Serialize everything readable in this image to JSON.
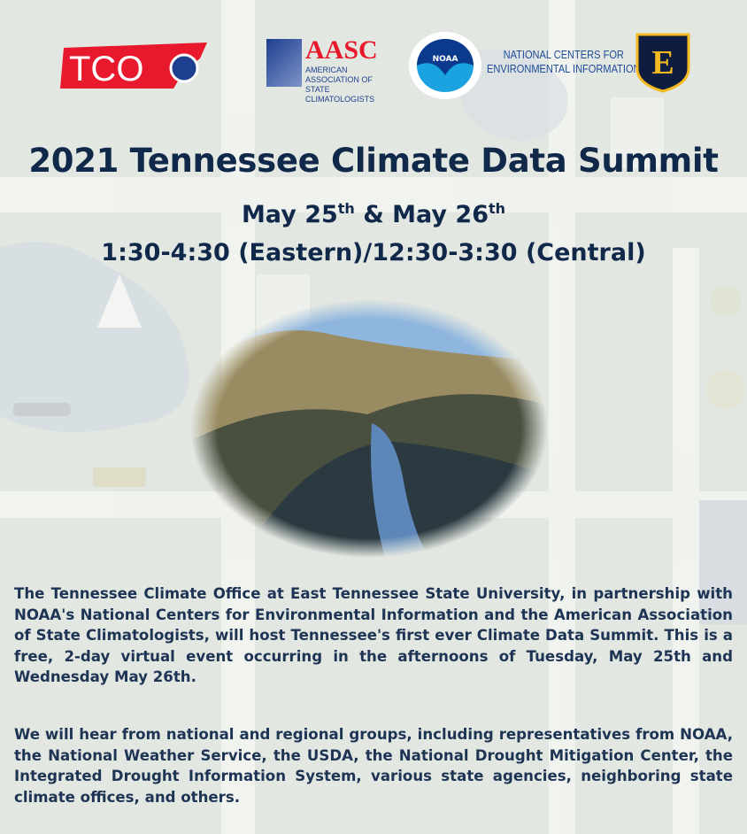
{
  "logos": {
    "tco": "TCO",
    "aasc": "AASC",
    "aasc_full_1": "AMERICAN ASSOCIATION OF",
    "aasc_full_2": "STATE CLIMATOLOGISTS",
    "noaa": "NOAA",
    "ncei_1": "NATIONAL CENTERS FOR",
    "ncei_2": "ENVIRONMENTAL INFORMATION",
    "etsu": "E"
  },
  "event": {
    "title": "2021 Tennessee Climate Data Summit",
    "date1": "May 25",
    "date_sup": "th",
    "amp": " & May 26",
    "times": "1:30-4:30 (Eastern)/12:30-3:30 (Central)"
  },
  "body": {
    "paragraph1": "The Tennessee Climate Office at East Tennessee State University, in partnership with NOAA's National Centers for Environmental Information and the American Association of State Climatologists, will host Tennessee's first ever Climate Data Summit. This is a free, 2-day virtual event occurring in the afternoons of Tuesday, May 25th and Wednesday May 26th.",
    "paragraph2": "We will hear from national and regional groups, including representatives from NOAA, the National Weather Service, the USDA, the National Drought Mitigation Center, the Integrated Drought Information System, various state agencies, neighboring state climate offices, and others."
  },
  "colors": {
    "text": "#10284a",
    "tco_red": "#e8192c",
    "etsu_navy": "#0e1d3f",
    "etsu_gold": "#f5b921"
  }
}
